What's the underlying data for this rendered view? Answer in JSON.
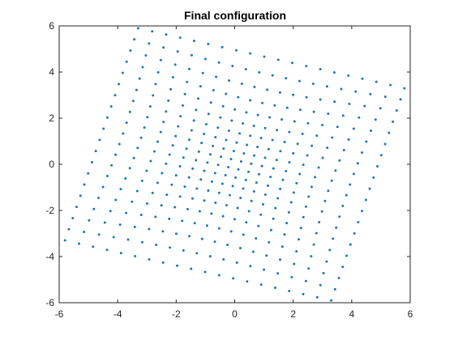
{
  "chart_data": {
    "type": "scatter",
    "title": "Final configuration",
    "xlabel": "",
    "ylabel": "",
    "xlim": [
      -6,
      6
    ],
    "ylim": [
      -6,
      6
    ],
    "xticks": [
      "-6",
      "-4",
      "-2",
      "0",
      "2",
      "4",
      "6"
    ],
    "yticks": [
      "-6",
      "-4",
      "-2",
      "0",
      "2",
      "4",
      "6"
    ],
    "grid": false,
    "legend": "none",
    "marker_color": "#1f77b4",
    "marker": "dot",
    "description_of_points": "A deformed square lattice of about 20x20 points rotated roughly 20 degrees, with corners stretched outward toward (-5.8,-3.3), (-3.3,5.9), (5.8,3.3) and (3.3,-5.9); edges curve with dense point clustering along the top-right and bottom-left edges.",
    "grid_rows": 20,
    "grid_cols": 20,
    "corners": {
      "bottom_left": [
        -5.8,
        -3.3
      ],
      "top_left": [
        -3.3,
        5.9
      ],
      "top_right": [
        5.8,
        3.3
      ],
      "bottom_right": [
        3.3,
        -5.9
      ]
    }
  }
}
